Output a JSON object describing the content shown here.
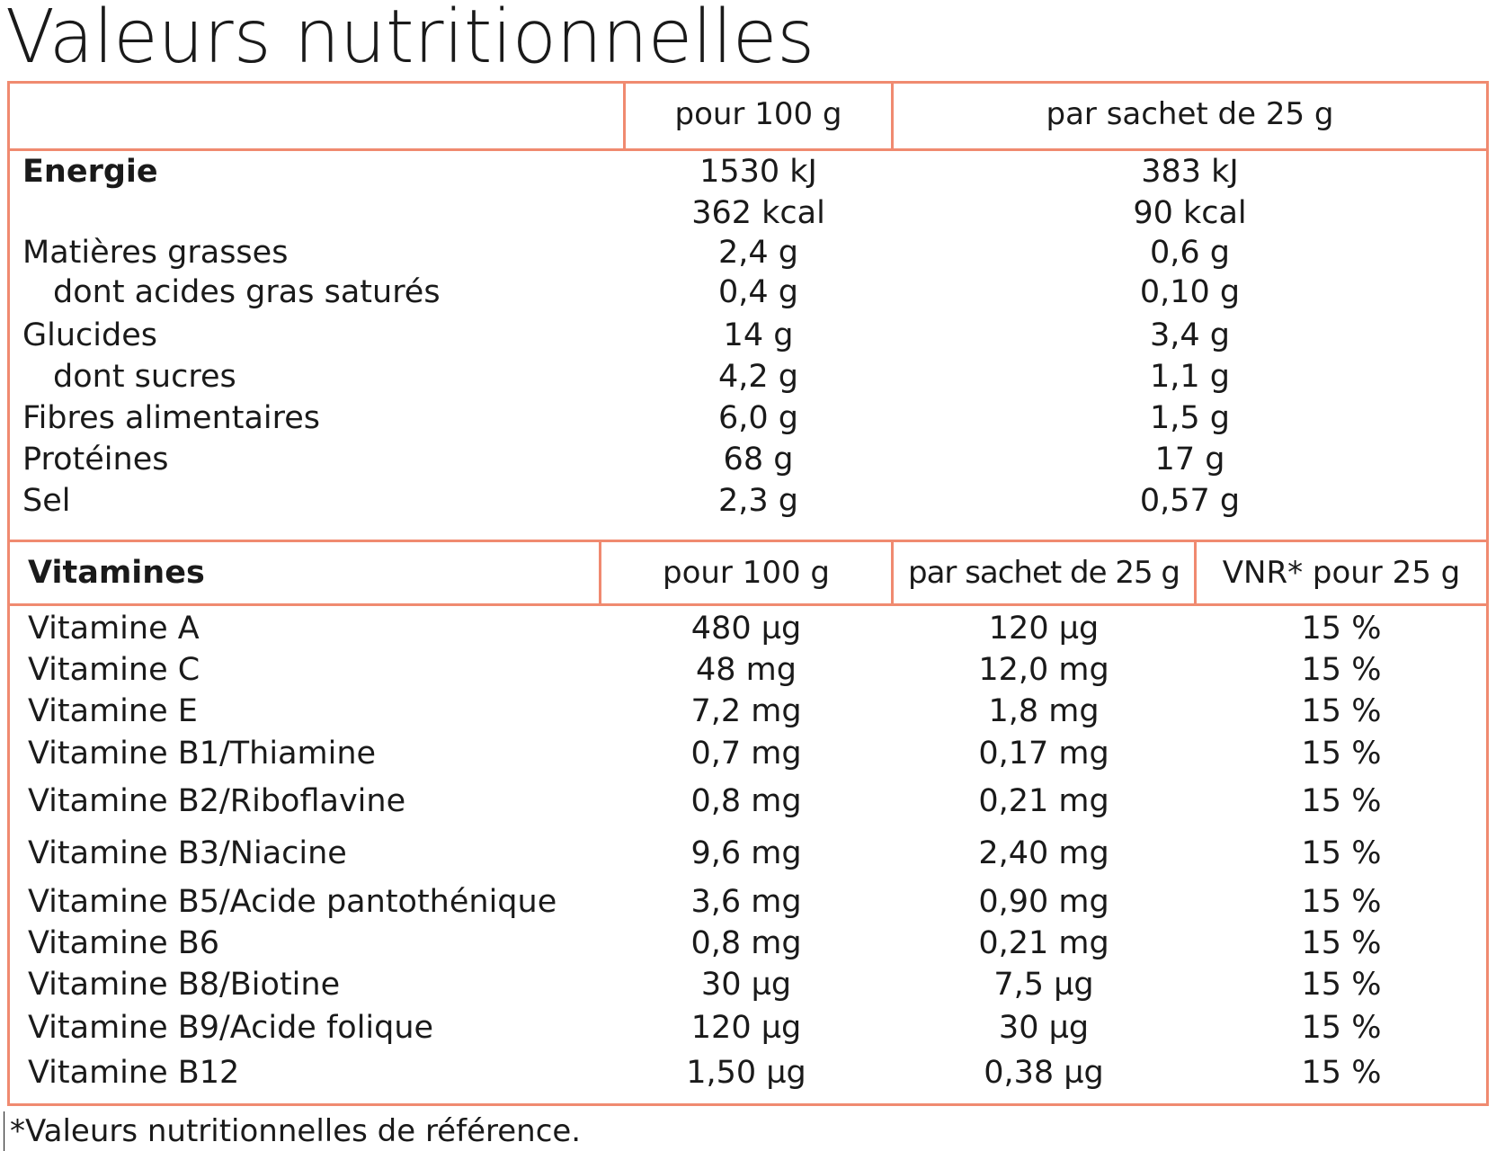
{
  "title": "Valeurs nutritionnelles",
  "nutrition": {
    "col_per100": "pour 100 g",
    "col_sachet": "par sachet de 25 g",
    "rows": [
      {
        "label": "Energie",
        "per100": "1530 kJ",
        "sachet": "383 kJ"
      },
      {
        "label": "",
        "per100": "362 kcal",
        "sachet": "90 kcal"
      },
      {
        "label": "Matières grasses",
        "per100": "2,4 g",
        "sachet": "0,6 g"
      },
      {
        "label": "dont acides gras saturés",
        "per100": "0,4 g",
        "sachet": "0,10 g"
      },
      {
        "label": "Glucides",
        "per100": "14 g",
        "sachet": "3,4 g"
      },
      {
        "label": "dont sucres",
        "per100": "4,2 g",
        "sachet": "1,1 g"
      },
      {
        "label": "Fibres alimentaires",
        "per100": "6,0 g",
        "sachet": "1,5 g"
      },
      {
        "label": "Protéines",
        "per100": "68 g",
        "sachet": "17 g"
      },
      {
        "label": "Sel",
        "per100": "2,3 g",
        "sachet": "0,57 g"
      }
    ]
  },
  "vitamins": {
    "header": "Vitamines",
    "col_per100": "pour 100 g",
    "col_sachet": "par sachet de 25 g",
    "col_vnr": "VNR* pour 25 g",
    "rows": [
      {
        "label": "Vitamine A",
        "per100": "480 µg",
        "sachet": "120 µg",
        "vnr": "15 %"
      },
      {
        "label": "Vitamine C",
        "per100": "48 mg",
        "sachet": "12,0 mg",
        "vnr": "15 %"
      },
      {
        "label": "Vitamine E",
        "per100": "7,2 mg",
        "sachet": "1,8 mg",
        "vnr": "15 %"
      },
      {
        "label": "Vitamine B1/Thiamine",
        "per100": "0,7 mg",
        "sachet": "0,17 mg",
        "vnr": "15 %"
      },
      {
        "label": "Vitamine B2/Riboflavine",
        "per100": "0,8 mg",
        "sachet": "0,21 mg",
        "vnr": "15 %"
      },
      {
        "label": "Vitamine B3/Niacine",
        "per100": "9,6 mg",
        "sachet": "2,40 mg",
        "vnr": "15 %"
      },
      {
        "label": "Vitamine B5/Acide pantothénique",
        "per100": "3,6 mg",
        "sachet": "0,90 mg",
        "vnr": "15 %"
      },
      {
        "label": "Vitamine B6",
        "per100": "0,8 mg",
        "sachet": "0,21 mg",
        "vnr": "15 %"
      },
      {
        "label": "Vitamine B8/Biotine",
        "per100": "30 µg",
        "sachet": "7,5 µg",
        "vnr": "15 %"
      },
      {
        "label": "Vitamine B9/Acide folique",
        "per100": "120 µg",
        "sachet": "30 µg",
        "vnr": "15 %"
      },
      {
        "label": "Vitamine B12",
        "per100": "1,50 µg",
        "sachet": "0,38 µg",
        "vnr": "15 %"
      }
    ]
  },
  "footnote": "*Valeurs nutritionnelles de référence.",
  "colors": {
    "border": "#f08a70",
    "text": "#1a1a1a"
  }
}
